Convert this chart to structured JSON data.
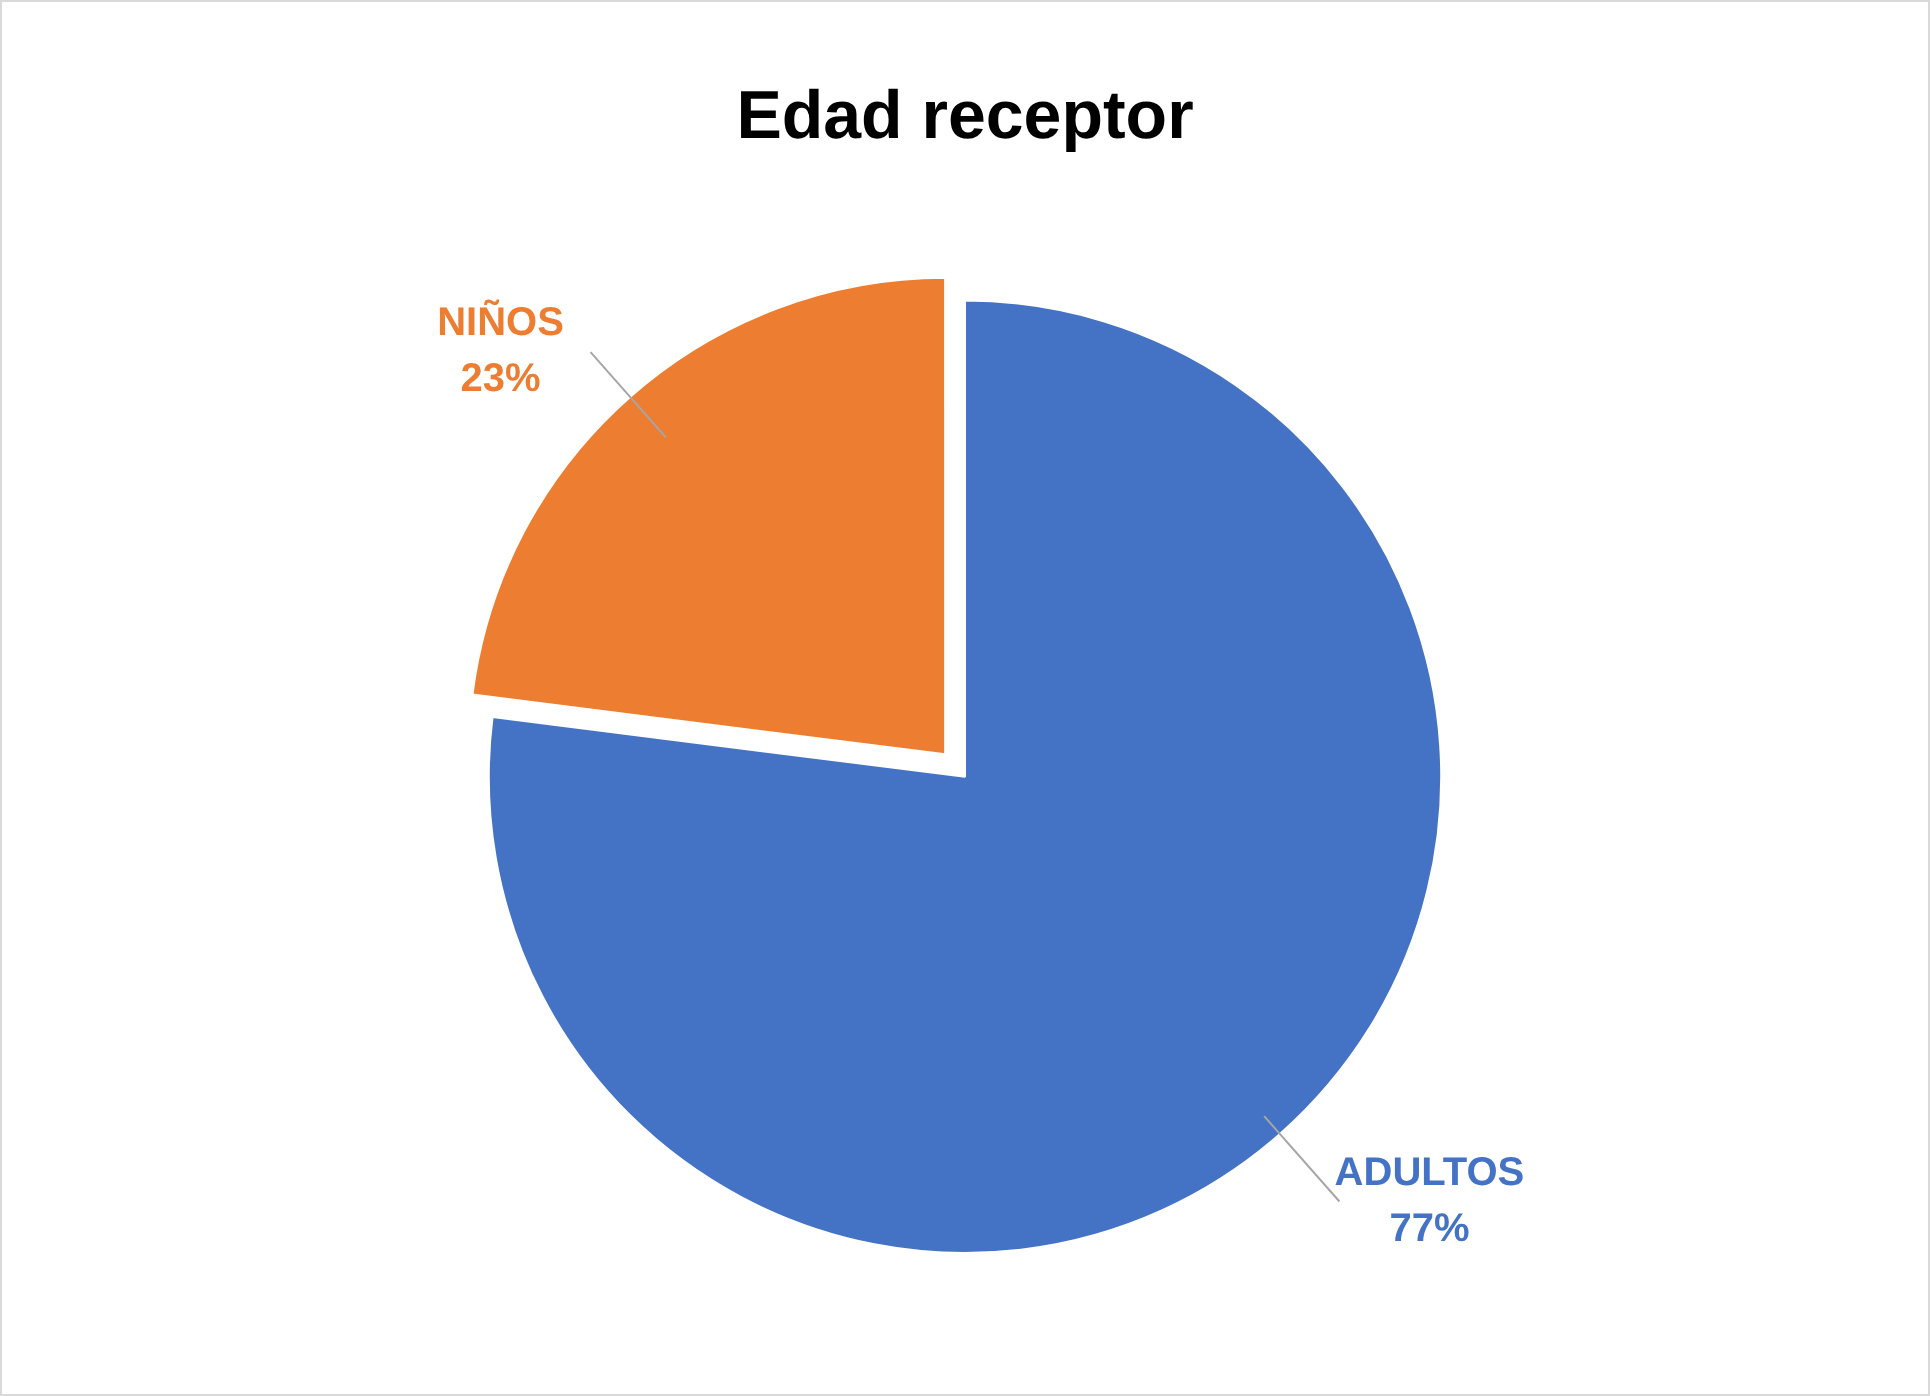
{
  "chart_data": {
    "type": "pie",
    "title": "Edad receptor",
    "categories": [
      "ADULTOS",
      "NIÑOS"
    ],
    "values": [
      77,
      23
    ],
    "colors": [
      "#4472c4",
      "#ed7d31"
    ],
    "data_labels": true,
    "value_labels": [
      "77%",
      "23%"
    ],
    "legend": false
  }
}
